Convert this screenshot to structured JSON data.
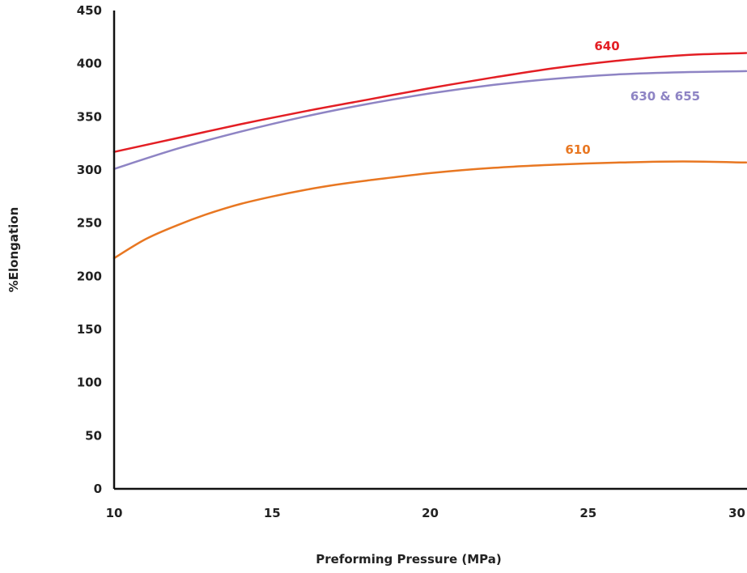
{
  "chart_data": {
    "type": "line",
    "title": "",
    "xlabel": "Preforming Pressure (MPa)",
    "ylabel": "%Elongation",
    "xlim": [
      10,
      30
    ],
    "ylim": [
      0,
      450
    ],
    "x_ticks": [
      10,
      15,
      20,
      25,
      30
    ],
    "y_ticks": [
      0,
      50,
      100,
      150,
      200,
      250,
      300,
      350,
      400,
      450
    ],
    "grid": false,
    "legend": "none",
    "series": [
      {
        "name": "640",
        "color": "#e31e24",
        "points": [
          [
            10,
            317
          ],
          [
            12,
            330
          ],
          [
            14,
            343
          ],
          [
            16,
            355
          ],
          [
            18,
            366
          ],
          [
            20,
            377
          ],
          [
            22,
            387
          ],
          [
            24,
            396
          ],
          [
            26,
            403
          ],
          [
            28,
            408
          ],
          [
            30,
            410
          ]
        ]
      },
      {
        "name": "630 & 655",
        "color": "#8e84c4",
        "points": [
          [
            10,
            301
          ],
          [
            12,
            320
          ],
          [
            14,
            336
          ],
          [
            16,
            350
          ],
          [
            18,
            362
          ],
          [
            20,
            372
          ],
          [
            22,
            380
          ],
          [
            24,
            386
          ],
          [
            26,
            390
          ],
          [
            28,
            392
          ],
          [
            30,
            393
          ]
        ]
      },
      {
        "name": "610",
        "color": "#e87722",
        "points": [
          [
            10,
            217
          ],
          [
            11,
            235
          ],
          [
            12,
            248
          ],
          [
            13,
            259
          ],
          [
            14,
            268
          ],
          [
            15,
            275
          ],
          [
            16,
            281
          ],
          [
            17,
            286
          ],
          [
            18,
            290
          ],
          [
            20,
            297
          ],
          [
            22,
            302
          ],
          [
            24,
            305
          ],
          [
            26,
            307
          ],
          [
            28,
            308
          ],
          [
            30,
            307
          ]
        ]
      }
    ]
  }
}
